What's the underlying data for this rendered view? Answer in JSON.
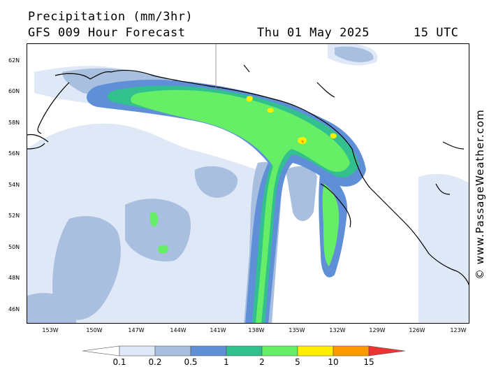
{
  "header": {
    "title": "Precipitation (mm/3hr)",
    "subtitle": "GFS 009 Hour Forecast",
    "date": "Thu 01 May 2025",
    "time": "15 UTC"
  },
  "map": {
    "lat_labels": [
      "62N",
      "60N",
      "58N",
      "56N",
      "54N",
      "52N",
      "50N",
      "48N",
      "46N"
    ],
    "lon_labels": [
      "153W",
      "150W",
      "147W",
      "144W",
      "141W",
      "138W",
      "135W",
      "132W",
      "129W",
      "126W",
      "123W"
    ]
  },
  "credit": "© www.PassageWeather.com",
  "legend": {
    "labels": [
      "0.1",
      "0.2",
      "0.5",
      "1",
      "2",
      "5",
      "10",
      "15"
    ],
    "colors": [
      "#ffffff",
      "#dfe8f6",
      "#a8bfe0",
      "#5f8fd6",
      "#33c08f",
      "#66ee66",
      "#ffee00",
      "#ff9900",
      "#ee3333"
    ]
  }
}
